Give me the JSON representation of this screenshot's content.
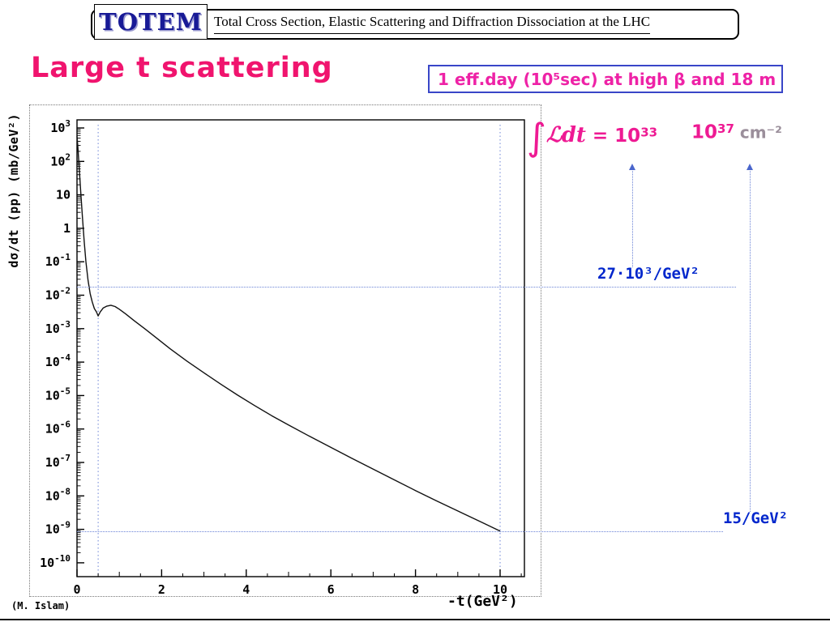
{
  "header": {
    "logo": "TOTEM",
    "title": "Total Cross Section, Elastic Scattering and Diffraction Dissociation at the LHC"
  },
  "slide": {
    "title": "Large t scattering",
    "info_box": "1 eff.day (10⁵sec) at high β and 18 m",
    "credit": "(M. Islam)"
  },
  "annotations": {
    "integral": "∫",
    "lumi_low_script": "ℒdt",
    "lumi_low_eq": " = 10",
    "lumi_low_exp": "33",
    "lumi_high_base": "10",
    "lumi_high_exp": "37",
    "lumi_high_unit": " cm⁻²"
  },
  "colors": {
    "slide_title_pink": "#f0146e",
    "annotation_magenta": "#ee1a93",
    "unit_gray": "#9b8f9b",
    "rate_label_blue": "#0026cc",
    "dotted_line_blue": "#6b83d6",
    "logo_navy": "#181a96",
    "info_border_blue": "#3946c8",
    "curve_black": "#111111"
  },
  "chart_data": {
    "type": "line",
    "title": "",
    "xlabel": "-t(GeV²)",
    "ylabel": "dσ/dt (pp) (mb/GeV²)",
    "x_scale": "linear",
    "y_scale": "log10",
    "xlim": [
      0,
      10.55
    ],
    "ylim_exponents": [
      -10.4,
      3.15
    ],
    "x_ticks_major": [
      0,
      2,
      4,
      6,
      8,
      10
    ],
    "y_tick_exponents": [
      3,
      2,
      1,
      0,
      -1,
      -2,
      -3,
      -4,
      -5,
      -6,
      -7,
      -8,
      -9,
      -10
    ],
    "grid": false,
    "legend": "none",
    "series": [
      {
        "x": [
          0,
          0.02,
          0.05,
          0.09,
          0.13,
          0.17,
          0.21,
          0.26,
          0.31,
          0.36,
          0.41,
          0.46,
          0.5,
          0.55,
          0.62,
          0.7,
          0.8,
          0.9,
          1.0,
          1.15,
          1.35,
          1.6,
          1.9,
          2.2,
          2.6,
          3.0,
          3.4,
          3.8,
          4.2,
          4.6,
          5.0,
          5.5,
          6.0,
          6.5,
          7.0,
          7.5,
          8.0,
          8.5,
          9.0,
          9.5,
          10.0
        ],
        "log10_y": [
          2.75,
          2.45,
          1.85,
          1.05,
          0.3,
          -0.4,
          -1.0,
          -1.55,
          -1.95,
          -2.2,
          -2.4,
          -2.5,
          -2.62,
          -2.5,
          -2.38,
          -2.33,
          -2.3,
          -2.34,
          -2.42,
          -2.56,
          -2.76,
          -3.0,
          -3.3,
          -3.6,
          -3.97,
          -4.32,
          -4.66,
          -4.99,
          -5.3,
          -5.6,
          -5.88,
          -6.22,
          -6.55,
          -6.88,
          -7.2,
          -7.52,
          -7.84,
          -8.15,
          -8.45,
          -8.75,
          -9.05
        ]
      }
    ],
    "reference_lines": {
      "vertical_x": [
        0.5,
        10
      ],
      "horizontal": [
        {
          "log10_y": -1.75,
          "label": "27·10³/GeV²"
        },
        {
          "log10_y": -9.05,
          "label": "15/GeV²"
        }
      ]
    }
  }
}
